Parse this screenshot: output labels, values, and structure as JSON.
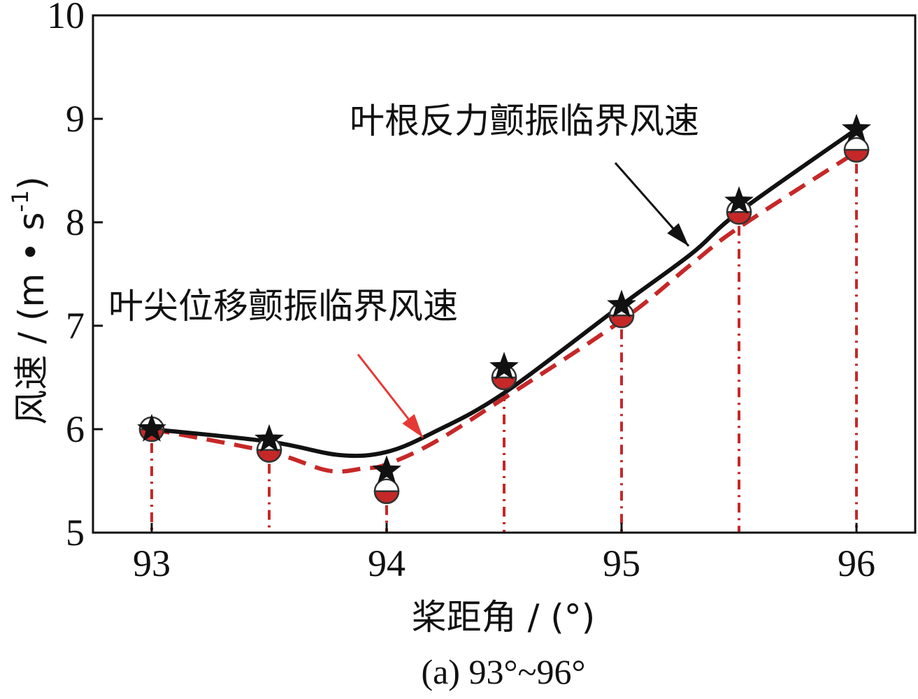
{
  "chart_data": {
    "type": "line",
    "title": "",
    "caption": "(a) 93°~96°",
    "xlabel": "桨距角 / (°)",
    "ylabel_main": "风速 / (m • s",
    "ylabel_sup": "-1",
    "ylabel_close": ")",
    "xlim": [
      92.75,
      96.25
    ],
    "ylim": [
      5,
      10
    ],
    "xticks": [
      93,
      94,
      95,
      96
    ],
    "xtick_labels": [
      "93",
      "94",
      "95",
      "96"
    ],
    "yticks": [
      5,
      6,
      7,
      8,
      9,
      10
    ],
    "ytick_labels": [
      "5",
      "6",
      "7",
      "8",
      "9",
      "10"
    ],
    "grid": false,
    "x": [
      93,
      93.5,
      94,
      94.5,
      95,
      95.5,
      96
    ],
    "series": [
      {
        "name": "叶根反力颤振临界风速",
        "values": [
          6.0,
          5.9,
          5.6,
          6.6,
          7.2,
          8.2,
          8.9
        ],
        "color": "#111111",
        "line_style": "solid",
        "marker": "star"
      },
      {
        "name": "叶尖位移颤振临界风速",
        "values": [
          6.0,
          5.8,
          5.4,
          6.5,
          7.1,
          8.1,
          8.7
        ],
        "color": "#c62828",
        "line_style": "dashed",
        "marker": "half-filled-circle"
      }
    ],
    "smooth_curves": {
      "solid": [
        [
          93.0,
          6.0
        ],
        [
          93.5,
          5.88
        ],
        [
          93.8,
          5.75
        ],
        [
          94.0,
          5.78
        ],
        [
          94.2,
          5.97
        ],
        [
          94.5,
          6.35
        ],
        [
          95.0,
          7.2
        ],
        [
          95.3,
          7.7
        ],
        [
          95.5,
          8.1
        ],
        [
          96.0,
          8.9
        ]
      ],
      "dashed": [
        [
          93.0,
          6.0
        ],
        [
          93.5,
          5.78
        ],
        [
          93.75,
          5.6
        ],
        [
          93.9,
          5.62
        ],
        [
          94.0,
          5.66
        ],
        [
          94.2,
          5.87
        ],
        [
          94.5,
          6.3
        ],
        [
          95.0,
          7.05
        ],
        [
          95.3,
          7.6
        ],
        [
          95.5,
          7.95
        ],
        [
          96.0,
          8.68
        ]
      ]
    },
    "annotations": [
      {
        "text": "叶根反力颤振临界风速",
        "color": "#111111"
      },
      {
        "text": "叶尖位移颤振临界风速",
        "color": "#e53935"
      }
    ]
  }
}
